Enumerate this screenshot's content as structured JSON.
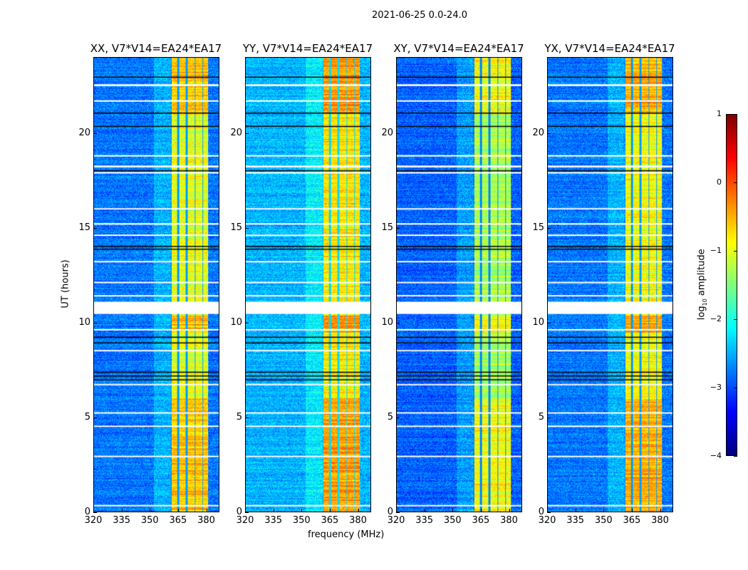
{
  "title": "2021-06-25 0.0-24.0",
  "chart_data": {
    "type": "heatmap",
    "title": "2021-06-25 0.0-24.0",
    "xlabel": "frequency (MHz)",
    "ylabel": "UT (hours)",
    "xlim": [
      320,
      387
    ],
    "ylim": [
      0,
      24
    ],
    "xticks": [
      "320",
      "335",
      "350",
      "365",
      "380"
    ],
    "xtick_values": [
      320,
      335,
      350,
      365,
      380
    ],
    "yticks": [
      "0",
      "5",
      "10",
      "15",
      "20"
    ],
    "ytick_values": [
      0,
      5,
      10,
      15,
      20
    ],
    "panels": [
      {
        "title": "XX, V7*V14=EA24*EA17",
        "band_level": -1.0,
        "background_level": -2.8
      },
      {
        "title": "YY, V7*V14=EA24*EA17",
        "band_level": -0.8,
        "background_level": -2.5
      },
      {
        "title": "XY, V7*V14=EA24*EA17",
        "band_level": -1.3,
        "background_level": -2.9
      },
      {
        "title": "YX, V7*V14=EA24*EA17",
        "band_level": -0.9,
        "background_level": -2.8
      }
    ],
    "bright_subbands_mhz": [
      [
        361.5,
        364.5
      ],
      [
        365.5,
        369.2
      ],
      [
        370,
        373.8
      ],
      [
        374.5,
        378
      ],
      [
        378.5,
        381
      ]
    ],
    "flagged_hours_white": [
      [
        10.45,
        11.1
      ],
      [
        22.5,
        22.6
      ],
      [
        21.7,
        21.75
      ],
      [
        18.8,
        18.85
      ],
      [
        18.2,
        18.3
      ],
      [
        17.9,
        17.95
      ],
      [
        16.0,
        16.05
      ],
      [
        15.2,
        15.25
      ],
      [
        14.6,
        14.65
      ],
      [
        13.2,
        13.25
      ],
      [
        12.1,
        12.15
      ],
      [
        11.4,
        11.45
      ],
      [
        9.6,
        9.65
      ],
      [
        8.5,
        8.55
      ],
      [
        6.7,
        6.75
      ],
      [
        5.2,
        5.25
      ],
      [
        4.5,
        4.55
      ],
      [
        2.9,
        2.95
      ],
      [
        0.3,
        0.35
      ]
    ],
    "flagged_hours_black": [
      23.0,
      21.1,
      20.4,
      18.05,
      14.05,
      13.9,
      9.25,
      8.95,
      7.4,
      7.2,
      7.0
    ],
    "colorbar": {
      "label": "log10 amplitude",
      "label_main": "log",
      "label_sub": "10",
      "label_rest": " amplitude",
      "range": [
        -4,
        1
      ],
      "colormap": "jet",
      "ticks": [
        "1",
        "0",
        "−1",
        "−2",
        "−3",
        "−4"
      ],
      "tick_values": [
        1,
        0,
        -1,
        -2,
        -3,
        -4
      ]
    }
  }
}
